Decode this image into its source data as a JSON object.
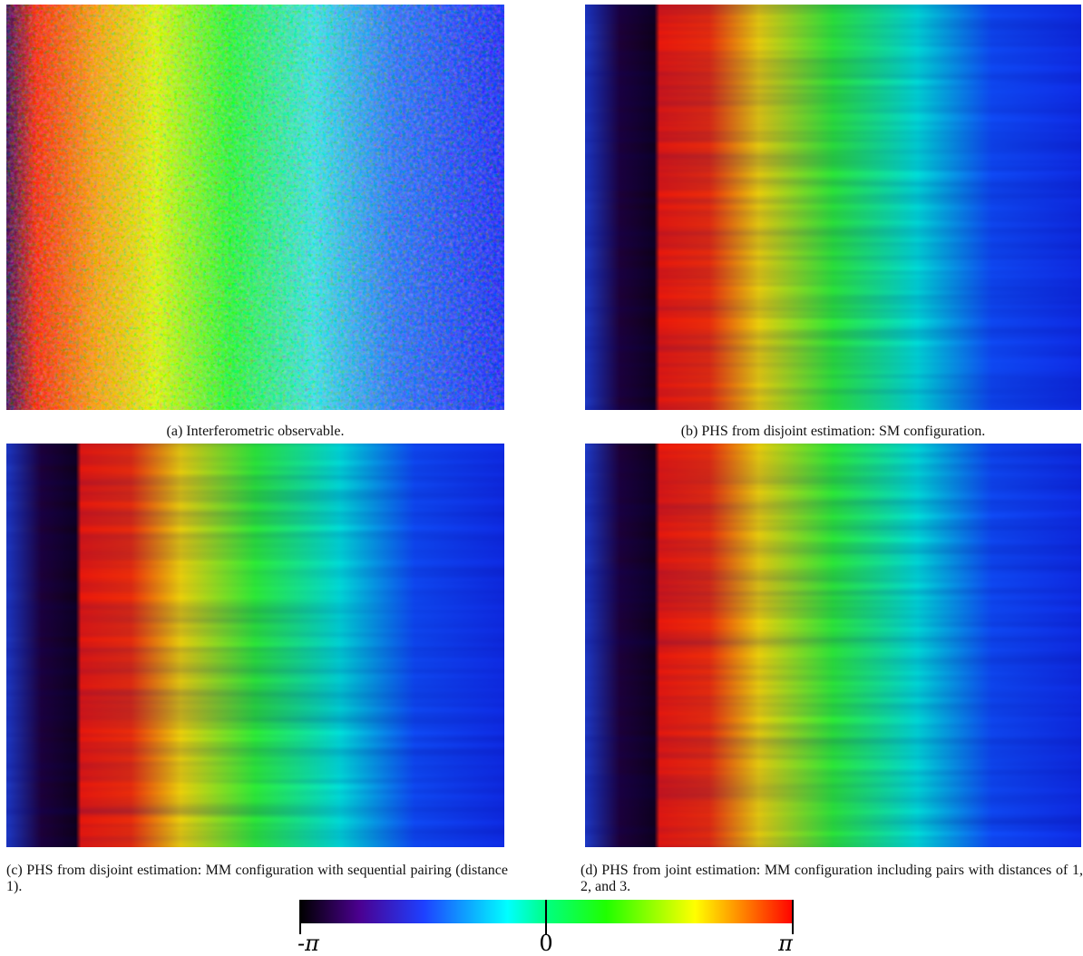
{
  "figure": {
    "panels": [
      {
        "caption": "(a) Interferometric observable."
      },
      {
        "caption": "(b) PHS from disjoint estimation: SM configuration."
      },
      {
        "caption": "(c) PHS from disjoint estimation: MM configuration with sequential pairing (distance 1)."
      },
      {
        "caption": "(d) PHS from joint estimation: MM configuration including pairs with distances of 1, 2, and 3."
      }
    ],
    "colorbar": {
      "labels": [
        "-π",
        "0",
        "π"
      ]
    }
  }
}
